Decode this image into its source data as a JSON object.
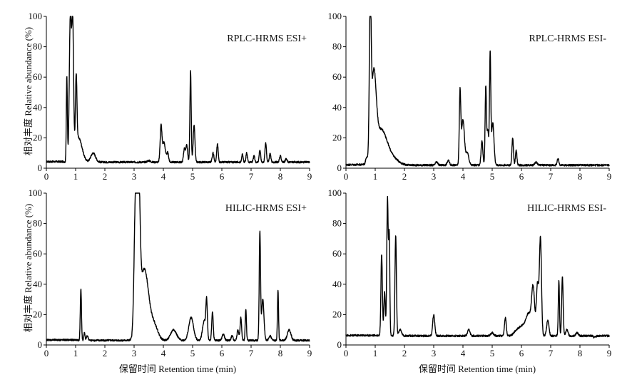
{
  "figure": {
    "y_axis_label": "相对丰度 Relative abundance (%)",
    "x_axis_label": "保留时间 Retention time (min)"
  },
  "chart_data": [
    {
      "type": "line",
      "title": "RPLC-HRMS ESI+",
      "xlim": [
        0,
        9
      ],
      "ylim": [
        0,
        100
      ],
      "xticks": [
        0,
        1,
        2,
        3,
        4,
        5,
        6,
        7,
        8,
        9
      ],
      "yticks": [
        0,
        20,
        40,
        60,
        80,
        100
      ],
      "baseline": 4,
      "series": [
        {
          "peaks": [
            {
              "x": 0.7,
              "y": 60,
              "w": 0.018
            },
            {
              "x": 0.82,
              "y": 100,
              "w": 0.035
            },
            {
              "x": 0.9,
              "y": 92,
              "w": 0.03
            },
            {
              "x": 1.02,
              "y": 50,
              "w": 0.025
            },
            {
              "x": 1.1,
              "y": 20,
              "w": 0.12
            },
            {
              "x": 1.6,
              "y": 10,
              "w": 0.08
            },
            {
              "x": 3.5,
              "y": 5,
              "w": 0.05
            },
            {
              "x": 3.92,
              "y": 27,
              "w": 0.03
            },
            {
              "x": 4.02,
              "y": 17,
              "w": 0.05
            },
            {
              "x": 4.15,
              "y": 10,
              "w": 0.03
            },
            {
              "x": 4.72,
              "y": 13,
              "w": 0.03
            },
            {
              "x": 4.8,
              "y": 15,
              "w": 0.03
            },
            {
              "x": 4.93,
              "y": 64,
              "w": 0.022
            },
            {
              "x": 5.05,
              "y": 28,
              "w": 0.03
            },
            {
              "x": 5.7,
              "y": 10,
              "w": 0.03
            },
            {
              "x": 5.85,
              "y": 16,
              "w": 0.025
            },
            {
              "x": 6.7,
              "y": 9,
              "w": 0.025
            },
            {
              "x": 6.85,
              "y": 10,
              "w": 0.025
            },
            {
              "x": 7.1,
              "y": 8,
              "w": 0.025
            },
            {
              "x": 7.3,
              "y": 12,
              "w": 0.025
            },
            {
              "x": 7.5,
              "y": 17,
              "w": 0.025
            },
            {
              "x": 7.65,
              "y": 10,
              "w": 0.025
            },
            {
              "x": 8.0,
              "y": 8,
              "w": 0.03
            },
            {
              "x": 8.2,
              "y": 6,
              "w": 0.03
            }
          ]
        }
      ]
    },
    {
      "type": "line",
      "title": "RPLC-HRMS ESI-",
      "xlim": [
        0,
        9
      ],
      "ylim": [
        0,
        100
      ],
      "xticks": [
        0,
        1,
        2,
        3,
        4,
        5,
        6,
        7,
        8,
        9
      ],
      "yticks": [
        0,
        20,
        40,
        60,
        80,
        100
      ],
      "baseline": 2,
      "series": [
        {
          "peaks": [
            {
              "x": 0.7,
              "y": 6,
              "w": 0.03
            },
            {
              "x": 0.83,
              "y": 100,
              "w": 0.03
            },
            {
              "x": 0.95,
              "y": 55,
              "w": 0.08
            },
            {
              "x": 1.2,
              "y": 25,
              "w": 0.2
            },
            {
              "x": 1.6,
              "y": 6,
              "w": 0.2
            },
            {
              "x": 3.1,
              "y": 4,
              "w": 0.04
            },
            {
              "x": 3.5,
              "y": 5,
              "w": 0.04
            },
            {
              "x": 3.9,
              "y": 49,
              "w": 0.025
            },
            {
              "x": 4.0,
              "y": 32,
              "w": 0.05
            },
            {
              "x": 4.15,
              "y": 10,
              "w": 0.05
            },
            {
              "x": 4.65,
              "y": 18,
              "w": 0.03
            },
            {
              "x": 4.78,
              "y": 53,
              "w": 0.022
            },
            {
              "x": 4.85,
              "y": 25,
              "w": 0.03
            },
            {
              "x": 4.93,
              "y": 75,
              "w": 0.022
            },
            {
              "x": 5.02,
              "y": 30,
              "w": 0.04
            },
            {
              "x": 5.7,
              "y": 20,
              "w": 0.025
            },
            {
              "x": 5.82,
              "y": 12,
              "w": 0.025
            },
            {
              "x": 6.5,
              "y": 4,
              "w": 0.04
            },
            {
              "x": 7.25,
              "y": 6,
              "w": 0.03
            }
          ]
        }
      ]
    },
    {
      "type": "line",
      "title": "HILIC-HRMS ESI+",
      "xlim": [
        0,
        9
      ],
      "ylim": [
        0,
        100
      ],
      "xticks": [
        0,
        1,
        2,
        3,
        4,
        5,
        6,
        7,
        8,
        9
      ],
      "yticks": [
        0,
        20,
        40,
        60,
        80,
        100
      ],
      "baseline": 3,
      "series": [
        {
          "peaks": [
            {
              "x": 1.18,
              "y": 37,
              "w": 0.02
            },
            {
              "x": 1.3,
              "y": 8,
              "w": 0.02
            },
            {
              "x": 1.4,
              "y": 6,
              "w": 0.03
            },
            {
              "x": 3.05,
              "y": 88,
              "w": 0.05
            },
            {
              "x": 3.15,
              "y": 97,
              "w": 0.05
            },
            {
              "x": 3.35,
              "y": 50,
              "w": 0.15
            },
            {
              "x": 3.7,
              "y": 12,
              "w": 0.12
            },
            {
              "x": 4.35,
              "y": 10,
              "w": 0.1
            },
            {
              "x": 4.95,
              "y": 18,
              "w": 0.08
            },
            {
              "x": 5.4,
              "y": 16,
              "w": 0.06
            },
            {
              "x": 5.48,
              "y": 26,
              "w": 0.025
            },
            {
              "x": 5.68,
              "y": 22,
              "w": 0.025
            },
            {
              "x": 6.05,
              "y": 7,
              "w": 0.04
            },
            {
              "x": 6.35,
              "y": 6,
              "w": 0.03
            },
            {
              "x": 6.55,
              "y": 10,
              "w": 0.03
            },
            {
              "x": 6.65,
              "y": 18,
              "w": 0.025
            },
            {
              "x": 6.82,
              "y": 24,
              "w": 0.02
            },
            {
              "x": 7.3,
              "y": 74,
              "w": 0.022
            },
            {
              "x": 7.4,
              "y": 30,
              "w": 0.04
            },
            {
              "x": 7.65,
              "y": 6,
              "w": 0.04
            },
            {
              "x": 7.92,
              "y": 36,
              "w": 0.018
            },
            {
              "x": 8.3,
              "y": 10,
              "w": 0.06
            }
          ]
        }
      ]
    },
    {
      "type": "line",
      "title": "HILIC-HRMS ESI-",
      "xlim": [
        0,
        9
      ],
      "ylim": [
        0,
        100
      ],
      "xticks": [
        0,
        1,
        2,
        3,
        4,
        5,
        6,
        7,
        8,
        9
      ],
      "yticks": [
        0,
        20,
        40,
        60,
        80,
        100
      ],
      "baseline": 6,
      "series": [
        {
          "peaks": [
            {
              "x": 1.22,
              "y": 60,
              "w": 0.025
            },
            {
              "x": 1.32,
              "y": 35,
              "w": 0.025
            },
            {
              "x": 1.42,
              "y": 97,
              "w": 0.025
            },
            {
              "x": 1.48,
              "y": 70,
              "w": 0.02
            },
            {
              "x": 1.7,
              "y": 72,
              "w": 0.025
            },
            {
              "x": 1.85,
              "y": 10,
              "w": 0.05
            },
            {
              "x": 3.0,
              "y": 20,
              "w": 0.035
            },
            {
              "x": 4.2,
              "y": 10,
              "w": 0.04
            },
            {
              "x": 5.0,
              "y": 8,
              "w": 0.05
            },
            {
              "x": 5.45,
              "y": 18,
              "w": 0.03
            },
            {
              "x": 5.8,
              "y": 8,
              "w": 0.08
            },
            {
              "x": 6.0,
              "y": 12,
              "w": 0.12
            },
            {
              "x": 6.25,
              "y": 20,
              "w": 0.1
            },
            {
              "x": 6.4,
              "y": 35,
              "w": 0.05
            },
            {
              "x": 6.55,
              "y": 40,
              "w": 0.04
            },
            {
              "x": 6.65,
              "y": 70,
              "w": 0.035
            },
            {
              "x": 6.9,
              "y": 16,
              "w": 0.04
            },
            {
              "x": 7.28,
              "y": 43,
              "w": 0.02
            },
            {
              "x": 7.4,
              "y": 45,
              "w": 0.025
            },
            {
              "x": 7.55,
              "y": 10,
              "w": 0.04
            },
            {
              "x": 7.9,
              "y": 8,
              "w": 0.04
            },
            {
              "x": 8.5,
              "y": 5,
              "w": 0.04
            }
          ]
        }
      ]
    }
  ]
}
